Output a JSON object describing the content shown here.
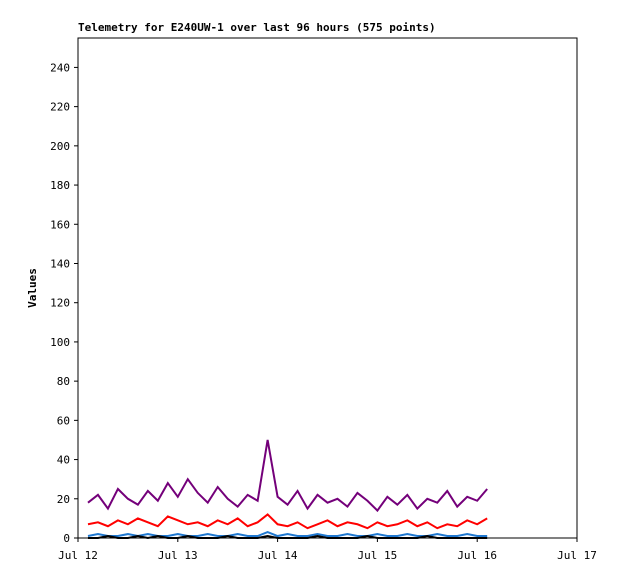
{
  "chart_data": {
    "type": "line",
    "title": "Telemetry for E240UW-1 over last 96 hours (575 points)",
    "y_label": "Values",
    "x": [
      0.1,
      0.2,
      0.3,
      0.4,
      0.5,
      0.6,
      0.7,
      0.8,
      0.9,
      1.0,
      1.1,
      1.2,
      1.3,
      1.4,
      1.5,
      1.6,
      1.7,
      1.8,
      1.9,
      2.0,
      2.1,
      2.2,
      2.3,
      2.4,
      2.5,
      2.6,
      2.7,
      2.8,
      2.9,
      3.0,
      3.1,
      3.2,
      3.3,
      3.4,
      3.5,
      3.6,
      3.7,
      3.8,
      3.9,
      4.0,
      4.1
    ],
    "series": [
      {
        "color": "#74007a",
        "values": [
          18,
          22,
          15,
          25,
          20,
          17,
          24,
          19,
          28,
          21,
          30,
          23,
          18,
          26,
          20,
          16,
          22,
          19,
          50,
          21,
          17,
          24,
          15,
          22,
          18,
          20,
          16,
          23,
          19,
          14,
          21,
          17,
          22,
          15,
          20,
          18,
          24,
          16,
          21,
          19,
          25
        ]
      },
      {
        "color": "#ff0000",
        "values": [
          7,
          8,
          6,
          9,
          7,
          10,
          8,
          6,
          11,
          9,
          7,
          8,
          6,
          9,
          7,
          10,
          6,
          8,
          12,
          7,
          6,
          8,
          5,
          7,
          9,
          6,
          8,
          7,
          5,
          8,
          6,
          7,
          9,
          6,
          8,
          5,
          7,
          6,
          9,
          7,
          10
        ]
      },
      {
        "color": "#1f78d0",
        "values": [
          1,
          2,
          1,
          1,
          2,
          1,
          2,
          1,
          1,
          2,
          1,
          1,
          2,
          1,
          1,
          2,
          1,
          1,
          3,
          1,
          2,
          1,
          1,
          2,
          1,
          1,
          2,
          1,
          1,
          2,
          1,
          1,
          2,
          1,
          1,
          2,
          1,
          1,
          2,
          1,
          1
        ]
      },
      {
        "color": "#000000",
        "values": [
          0,
          0,
          1,
          0,
          0,
          1,
          0,
          1,
          0,
          0,
          1,
          0,
          0,
          0,
          1,
          0,
          0,
          0,
          1,
          0,
          0,
          0,
          0,
          1,
          0,
          0,
          0,
          0,
          1,
          0,
          0,
          0,
          0,
          0,
          1,
          0,
          0,
          0,
          0,
          0,
          0
        ]
      }
    ],
    "xlim": [
      0,
      5
    ],
    "xticks": [
      {
        "value": 0,
        "label": "Jul 12"
      },
      {
        "value": 1,
        "label": "Jul 13"
      },
      {
        "value": 2,
        "label": "Jul 14"
      },
      {
        "value": 3,
        "label": "Jul 15"
      },
      {
        "value": 4,
        "label": "Jul 16"
      },
      {
        "value": 5,
        "label": "Jul 17"
      }
    ],
    "ylim": [
      0,
      255
    ],
    "yticks": [
      0,
      20,
      40,
      60,
      80,
      100,
      120,
      140,
      160,
      180,
      200,
      220,
      240
    ]
  }
}
